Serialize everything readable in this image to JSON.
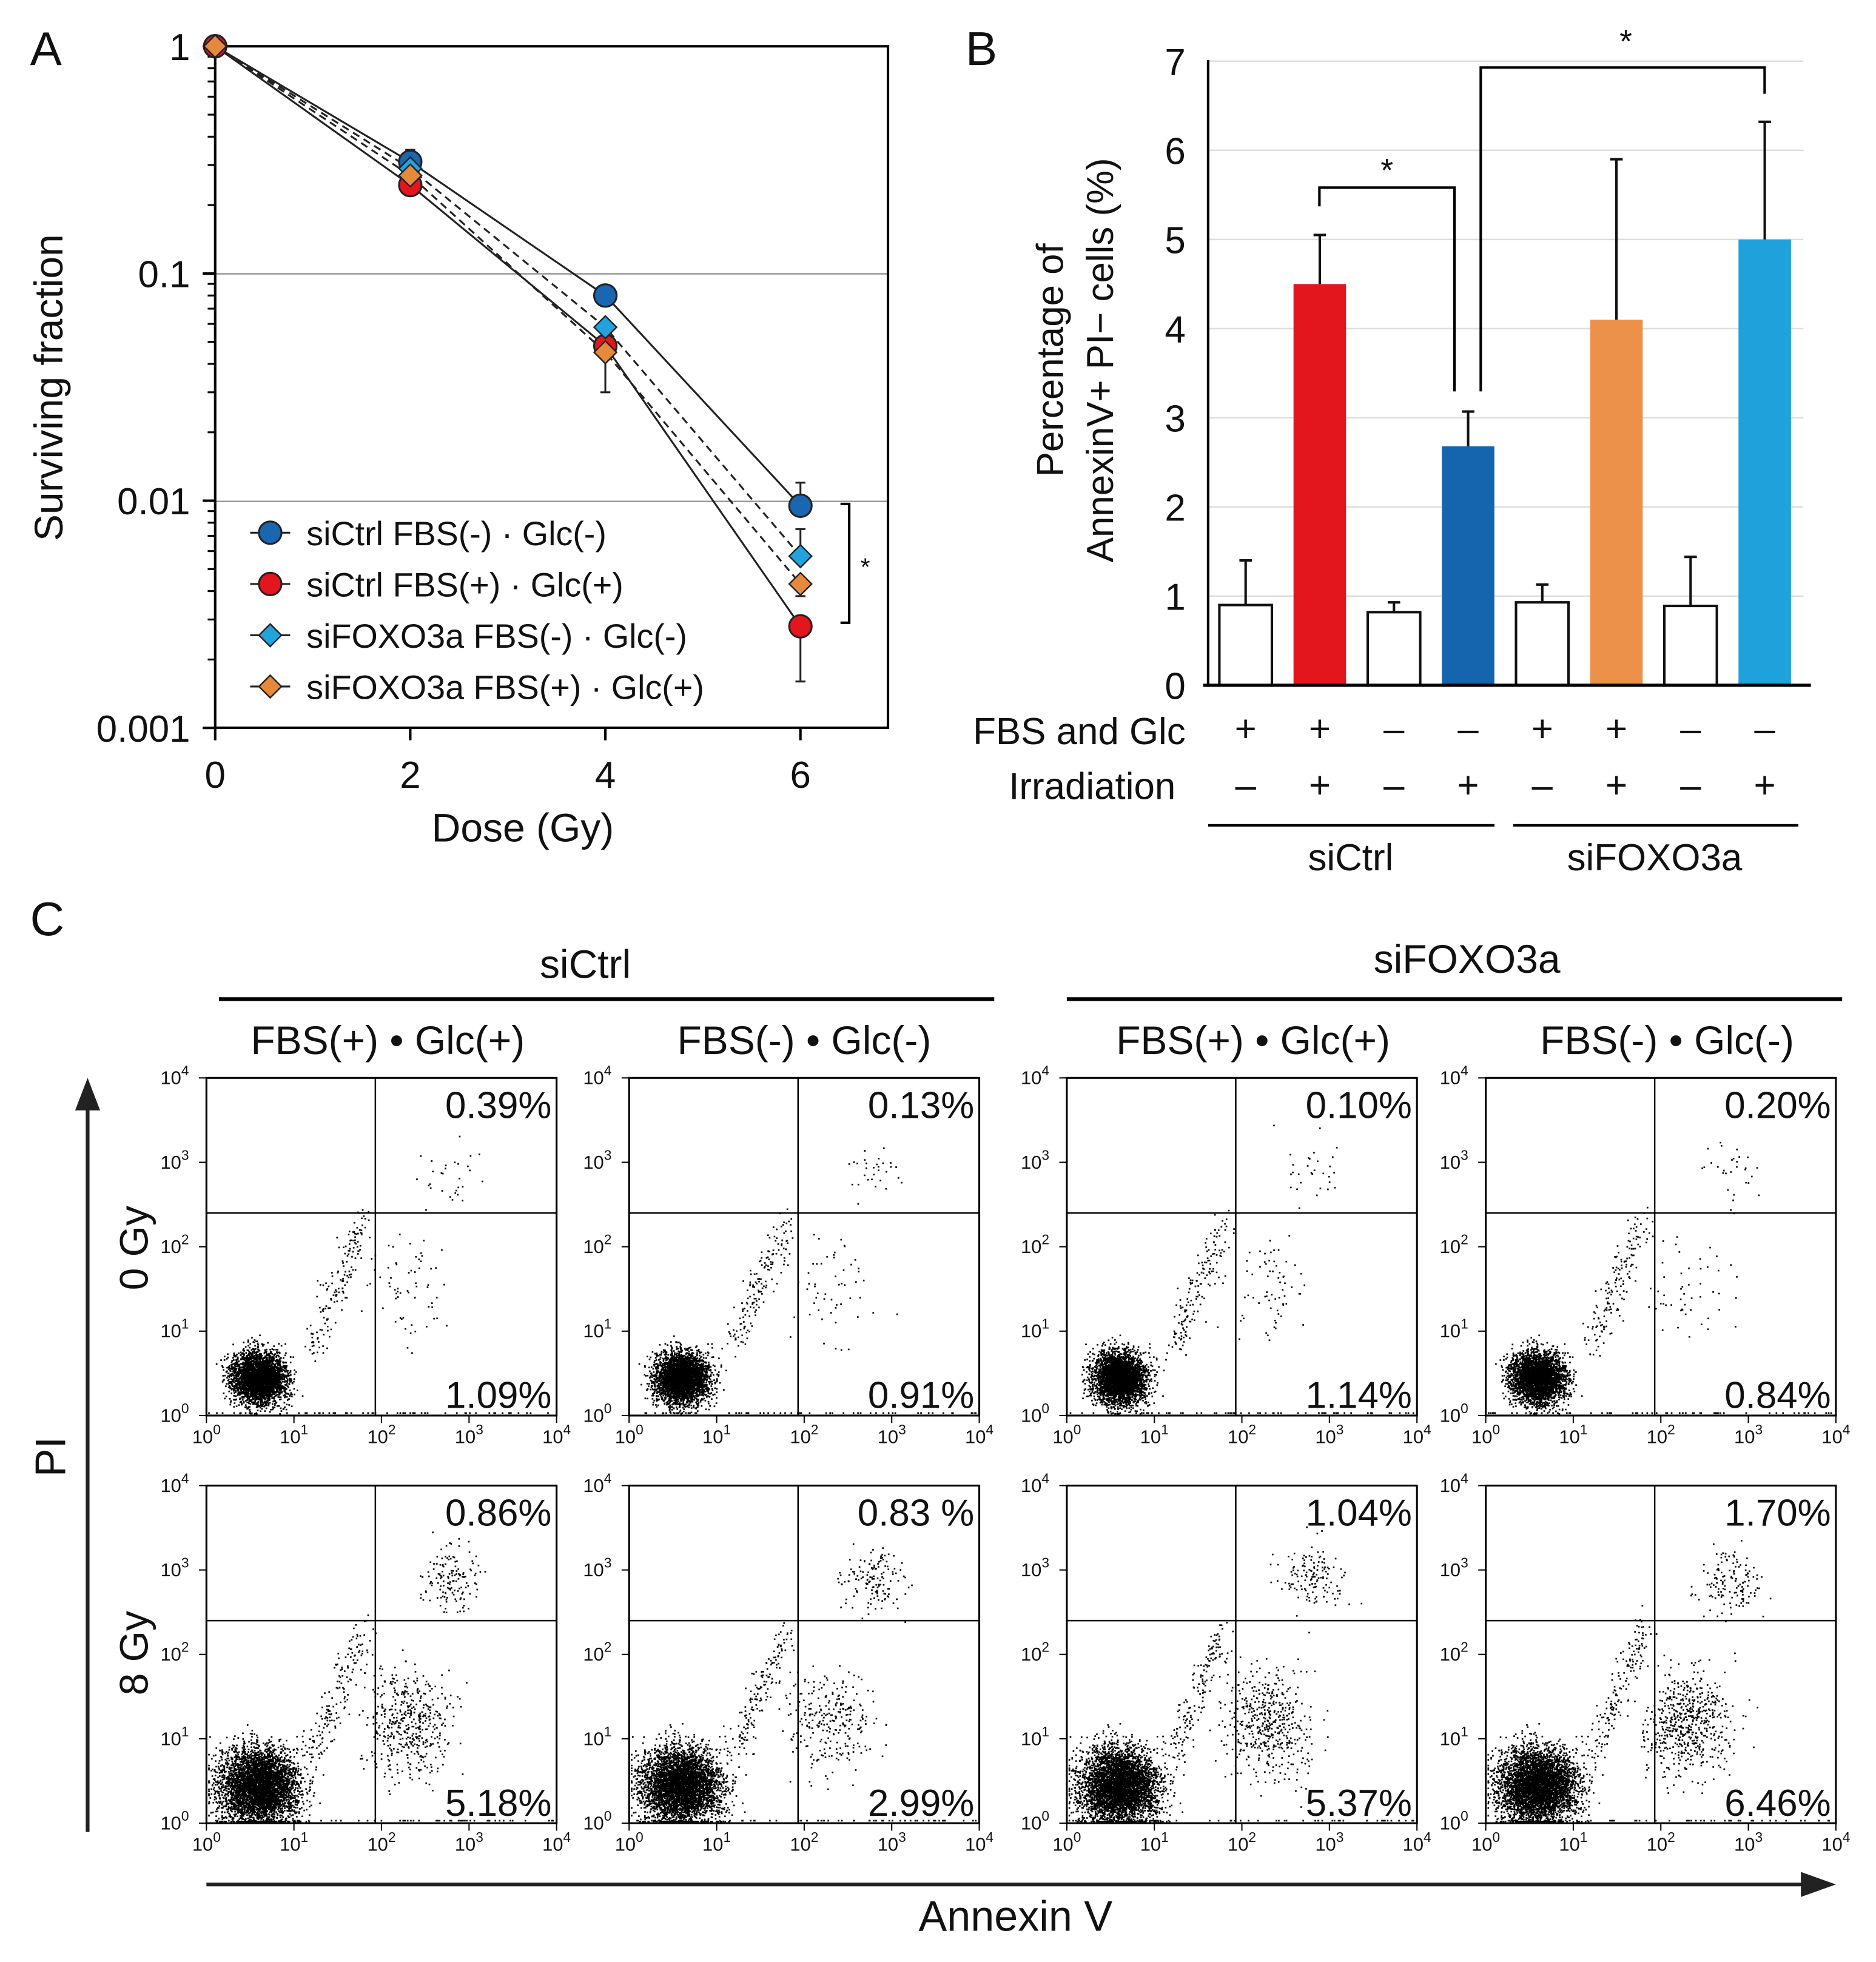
{
  "panel_labels": {
    "a": "A",
    "b": "B",
    "c": "C"
  },
  "chart_data": [
    {
      "type": "line",
      "title": "",
      "xlabel": "Dose (Gy)",
      "ylabel": "Surviving fraction",
      "yscale": "log",
      "ylim": [
        0.001,
        1
      ],
      "xlim": [
        0,
        6.9
      ],
      "xticks": [
        "0",
        "2",
        "4",
        "6"
      ],
      "yticks": [
        "1",
        "0.1",
        "0.01",
        "0.001"
      ],
      "grid": "horizontal at 0.1 and 0.01",
      "legend_position": "bottom-left",
      "x": [
        0,
        2,
        4,
        6
      ],
      "significance": "*",
      "series": [
        {
          "name": "siCtrl FBS(-) · Glc(-)",
          "marker": "circle",
          "dash": false,
          "color": "#1a66b0",
          "values": [
            1,
            0.31,
            0.08,
            0.0095
          ],
          "err_high": [
            1,
            0.35,
            0.08,
            0.012
          ],
          "err_low": [
            1,
            0.31,
            0.08,
            0.0095
          ]
        },
        {
          "name": "siCtrl FBS(+) · Glc(+)",
          "marker": "circle",
          "dash": false,
          "color": "#e3161d",
          "values": [
            1,
            0.245,
            0.048,
            0.0028
          ],
          "err_high": [
            1,
            0.245,
            0.048,
            0.0028
          ],
          "err_low": [
            1,
            0.245,
            0.048,
            0.0016
          ]
        },
        {
          "name": "siFOXO3a FBS(-) · Glc(-)",
          "marker": "diamond",
          "dash": true,
          "color": "#22a3dd",
          "values": [
            1,
            0.29,
            0.058,
            0.0057
          ],
          "err_high": [
            1,
            0.29,
            0.058,
            0.0075
          ],
          "err_low": [
            1,
            0.29,
            0.058,
            0.0057
          ]
        },
        {
          "name": "siFOXO3a FBS(+) · Glc(+)",
          "marker": "diamond",
          "dash": true,
          "color": "#e6893c",
          "values": [
            1,
            0.27,
            0.045,
            0.0043
          ],
          "err_high": [
            1,
            0.27,
            0.045,
            0.0043
          ],
          "err_low": [
            1,
            0.27,
            0.03,
            0.0038
          ]
        }
      ]
    },
    {
      "type": "bar",
      "ylabel_line1": "Percentage of",
      "ylabel_line2": "AnnexinV+ PI− cells (%)",
      "ylim": [
        0,
        7
      ],
      "yticks": [
        "0",
        "1",
        "2",
        "3",
        "4",
        "5",
        "6",
        "7"
      ],
      "grid": "horizontal",
      "values": [
        0.9,
        4.5,
        0.82,
        2.68,
        0.93,
        4.1,
        0.89,
        5.0
      ],
      "err_high": [
        1.4,
        5.05,
        0.93,
        3.07,
        1.13,
        5.9,
        1.44,
        6.32
      ],
      "colors": [
        "#ffffff",
        "#e3161d",
        "#ffffff",
        "#1565ae",
        "#ffffff",
        "#ec914a",
        "#ffffff",
        "#1fa2dc"
      ],
      "row_labels": [
        "FBS and Glc",
        "Irradiation"
      ],
      "fbs_glc": [
        "+",
        "+",
        "–",
        "–",
        "+",
        "+",
        "–",
        "–"
      ],
      "irradiation": [
        "–",
        "+",
        "–",
        "+",
        "–",
        "+",
        "–",
        "+"
      ],
      "groups": [
        "siCtrl",
        "siFOXO3a"
      ],
      "significance": [
        "*",
        "*"
      ]
    },
    {
      "type": "scatter",
      "xlabel": "Annexin V",
      "ylabel": "PI",
      "axis_base": "10",
      "axis_exponents": [
        "0",
        "1",
        "2",
        "3",
        "4"
      ],
      "groups": [
        "siCtrl",
        "siFOXO3a"
      ],
      "conditions": [
        "FBS(+) • Glc(+)",
        "FBS(-) • Glc(-)",
        "FBS(+) • Glc(+)",
        "FBS(-) • Glc(-)"
      ],
      "rows": [
        "0 Gy",
        "8 Gy"
      ],
      "upper_right_percent": [
        [
          "0.39%",
          "0.13%",
          "0.10%",
          "0.20%"
        ],
        [
          "0.86%",
          "0.83 %",
          "1.04%",
          "1.70%"
        ]
      ],
      "lower_right_percent": [
        [
          "1.09%",
          "0.91%",
          "1.14%",
          "0.84%"
        ],
        [
          "5.18%",
          "2.99%",
          "5.37%",
          "6.46%"
        ]
      ]
    }
  ]
}
